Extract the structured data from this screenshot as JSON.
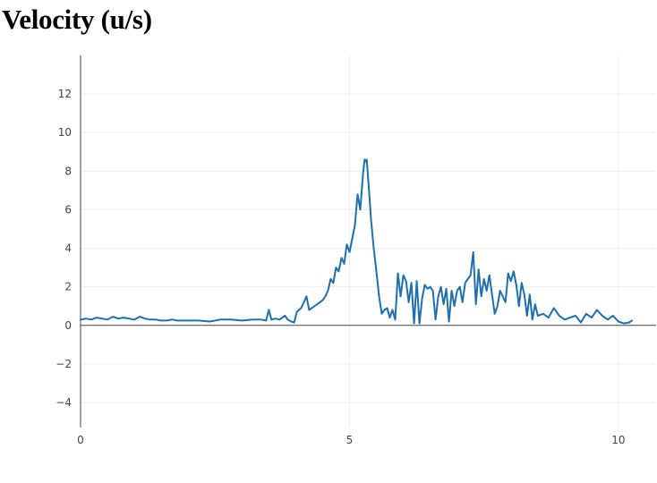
{
  "page": {
    "title": "Velocity (u/s)"
  },
  "chart_data": {
    "type": "line",
    "title": "Velocity (u/s)",
    "xlabel": "",
    "ylabel": "",
    "xlim": [
      0,
      10.7
    ],
    "ylim": [
      -5.3,
      14
    ],
    "x_ticks": [
      {
        "value": 0,
        "label": "0"
      },
      {
        "value": 5,
        "label": "5"
      },
      {
        "value": 10,
        "label": "10"
      }
    ],
    "y_ticks": [
      {
        "value": -4,
        "label": "−4"
      },
      {
        "value": -2,
        "label": "−2"
      },
      {
        "value": 0,
        "label": "0"
      },
      {
        "value": 2,
        "label": "2"
      },
      {
        "value": 4,
        "label": "4"
      },
      {
        "value": 6,
        "label": "6"
      },
      {
        "value": 8,
        "label": "8"
      },
      {
        "value": 10,
        "label": "10"
      },
      {
        "value": 12,
        "label": "12"
      }
    ],
    "grid": true,
    "legend": "none",
    "colors": {
      "line": "#1f6fae",
      "grid": "#eeeeee",
      "axis": "#444444",
      "zeroline": "#444444"
    },
    "series": [
      {
        "x": [
          0,
          0.1,
          0.2,
          0.3,
          0.4,
          0.5,
          0.6,
          0.7,
          0.8,
          0.9,
          1.0,
          1.1,
          1.2,
          1.3,
          1.4,
          1.5,
          1.6,
          1.7,
          1.8,
          1.9,
          2.0,
          2.2,
          2.4,
          2.6,
          2.8,
          3.0,
          3.2,
          3.35,
          3.45,
          3.5,
          3.55,
          3.62,
          3.7,
          3.8,
          3.85,
          3.92,
          3.97,
          4.02,
          4.1,
          4.2,
          4.25,
          4.3,
          4.4,
          4.5,
          4.55,
          4.6,
          4.65,
          4.7,
          4.75,
          4.8,
          4.85,
          4.9,
          4.95,
          5.0,
          5.05,
          5.1,
          5.15,
          5.2,
          5.25,
          5.28,
          5.3,
          5.32,
          5.35,
          5.4,
          5.45,
          5.5,
          5.55,
          5.6,
          5.65,
          5.7,
          5.75,
          5.8,
          5.85,
          5.9,
          5.95,
          6.0,
          6.05,
          6.1,
          6.15,
          6.2,
          6.25,
          6.3,
          6.35,
          6.4,
          6.45,
          6.5,
          6.55,
          6.6,
          6.65,
          6.7,
          6.75,
          6.8,
          6.85,
          6.9,
          6.95,
          7.0,
          7.05,
          7.1,
          7.15,
          7.2,
          7.25,
          7.3,
          7.35,
          7.4,
          7.45,
          7.5,
          7.55,
          7.6,
          7.65,
          7.7,
          7.75,
          7.8,
          7.85,
          7.9,
          7.95,
          8.0,
          8.05,
          8.1,
          8.15,
          8.2,
          8.25,
          8.3,
          8.35,
          8.4,
          8.45,
          8.5,
          8.6,
          8.7,
          8.8,
          8.9,
          9.0,
          9.1,
          9.2,
          9.3,
          9.4,
          9.5,
          9.6,
          9.7,
          9.8,
          9.9,
          10.0,
          10.1,
          10.2,
          10.25
        ],
        "y": [
          0.3,
          0.35,
          0.3,
          0.4,
          0.35,
          0.3,
          0.45,
          0.35,
          0.4,
          0.35,
          0.3,
          0.45,
          0.35,
          0.3,
          0.3,
          0.25,
          0.25,
          0.3,
          0.25,
          0.25,
          0.25,
          0.25,
          0.2,
          0.3,
          0.3,
          0.25,
          0.3,
          0.3,
          0.25,
          0.8,
          0.3,
          0.35,
          0.3,
          0.5,
          0.3,
          0.2,
          0.15,
          0.7,
          0.9,
          1.5,
          0.8,
          0.9,
          1.1,
          1.3,
          1.5,
          1.8,
          2.4,
          2.2,
          3.0,
          2.8,
          3.5,
          3.2,
          4.2,
          3.8,
          4.5,
          5.2,
          6.8,
          6.0,
          7.8,
          8.6,
          8.5,
          8.6,
          7.5,
          5.5,
          4.0,
          2.8,
          1.5,
          0.6,
          0.8,
          0.9,
          0.4,
          0.8,
          0.3,
          2.7,
          1.5,
          2.6,
          2.3,
          1.2,
          2.2,
          0.1,
          2.3,
          0.1,
          1.4,
          2.1,
          1.9,
          2.0,
          1.8,
          0.3,
          1.5,
          2.0,
          1.1,
          1.9,
          0.2,
          1.8,
          1.0,
          1.8,
          2.0,
          1.2,
          2.2,
          2.4,
          2.6,
          3.8,
          1.1,
          2.9,
          1.5,
          2.4,
          1.8,
          2.6,
          1.6,
          0.6,
          1.0,
          1.8,
          1.5,
          1.2,
          2.7,
          2.3,
          2.8,
          2.1,
          1.0,
          2.2,
          1.6,
          0.5,
          1.6,
          0.3,
          1.1,
          0.5,
          0.6,
          0.4,
          0.9,
          0.5,
          0.3,
          0.4,
          0.5,
          0.15,
          0.6,
          0.4,
          0.8,
          0.5,
          0.3,
          0.5,
          0.2,
          0.1,
          0.15,
          0.25
        ]
      }
    ]
  }
}
